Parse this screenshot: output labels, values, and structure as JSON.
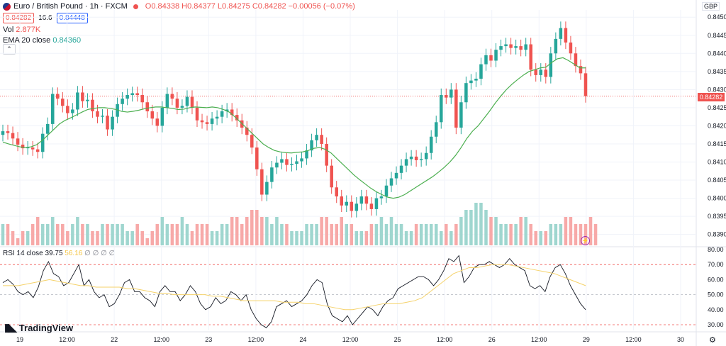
{
  "header": {
    "symbol": "Euro / British Pound · 1h · FXCM",
    "ohlc": "O0.84338 H0.84377 L0.84275 C0.84282 −0.00056 (−0.07%)",
    "bid": "0.84282",
    "spread": "16.6",
    "ask": "0.84448"
  },
  "volume_legend": {
    "name": "Vol",
    "value": "2.877K"
  },
  "ema_legend": {
    "name": "EMA 20 close",
    "value": "0.84360"
  },
  "rsi_legend": {
    "name": "RSI 14 close",
    "value1": "39.75",
    "value2": "56.16",
    "extras": "∅ ∅ ∅ ∅"
  },
  "price_axis": {
    "currency": "GBP",
    "current_price": "0.84282",
    "ticks": [
      "0.84500",
      "0.84450",
      "0.84400",
      "0.84350",
      "0.84300",
      "0.84250",
      "0.84200",
      "0.84150",
      "0.84100",
      "0.84050",
      "0.84000",
      "0.83950",
      "0.83900"
    ]
  },
  "rsi_axis": {
    "ticks": [
      "80.00",
      "70.00",
      "60.00",
      "50.00",
      "40.00",
      "30.00"
    ]
  },
  "time_axis": {
    "ticks": [
      "19",
      "12:00",
      "22",
      "12:00",
      "23",
      "12:00",
      "24",
      "12:00",
      "25",
      "12:00",
      "26",
      "12:00",
      "29",
      "12:00",
      "30"
    ]
  },
  "branding": {
    "logo_text": "TradingView"
  },
  "colors": {
    "up": "#26a69a",
    "down": "#ef5350",
    "ema": "#4caf50",
    "rsi": "#131722",
    "rsi_ma": "#f5d26a"
  },
  "chart_data": {
    "type": "candlestick",
    "title": "Euro / British Pound · 1h · FXCM",
    "ylim": [
      0.8387,
      0.8452
    ],
    "candles_close": [
      0.84185,
      0.8418,
      0.84165,
      0.84148,
      0.84138,
      0.8414,
      0.84135,
      0.84128,
      0.84178,
      0.84205,
      0.84288,
      0.84275,
      0.84255,
      0.84235,
      0.84245,
      0.84292,
      0.84268,
      0.84272,
      0.8424,
      0.84225,
      0.84228,
      0.8419,
      0.84225,
      0.8426,
      0.84275,
      0.84285,
      0.8429,
      0.84285,
      0.84265,
      0.8424,
      0.8422,
      0.842,
      0.8425,
      0.84288,
      0.84275,
      0.8425,
      0.84255,
      0.8428,
      0.8425,
      0.84215,
      0.8421,
      0.84205,
      0.8422,
      0.84225,
      0.8424,
      0.84245,
      0.8423,
      0.84215,
      0.84195,
      0.84175,
      0.8414,
      0.8408,
      0.8401,
      0.84045,
      0.84085,
      0.84098,
      0.84108,
      0.84092,
      0.84095,
      0.84102,
      0.8411,
      0.84132,
      0.8416,
      0.84175,
      0.8415,
      0.8409,
      0.8403,
      0.84005,
      0.8398,
      0.8399,
      0.83965,
      0.83985,
      0.84005,
      0.83985,
      0.8397,
      0.84,
      0.84005,
      0.84035,
      0.84055,
      0.8407,
      0.8409,
      0.84108,
      0.84115,
      0.84105,
      0.84108,
      0.84125,
      0.8417,
      0.8421,
      0.84285,
      0.84278,
      0.843,
      0.84195,
      0.84265,
      0.84318,
      0.84325,
      0.8433,
      0.8437,
      0.84395,
      0.8438,
      0.8441,
      0.8442,
      0.84425,
      0.84415,
      0.8442,
      0.8441,
      0.84425,
      0.84355,
      0.8434,
      0.84355,
      0.84335,
      0.844,
      0.8444,
      0.8447,
      0.8443,
      0.844,
      0.84365,
      0.84345,
      0.84282
    ],
    "ema20": [
      0.84155,
      0.8415,
      0.84146,
      0.84142,
      0.8414,
      0.84142,
      0.84148,
      0.8416,
      0.84175,
      0.8419,
      0.84205,
      0.84215,
      0.84222,
      0.8423,
      0.84238,
      0.84245,
      0.84248,
      0.8425,
      0.8425,
      0.84248,
      0.84245,
      0.8424,
      0.84238,
      0.8424,
      0.84243,
      0.84247,
      0.8425,
      0.84252,
      0.84252,
      0.8425,
      0.84248,
      0.84245,
      0.84246,
      0.8425,
      0.84252,
      0.84251,
      0.8425,
      0.84252,
      0.8425,
      0.84245,
      0.84238,
      0.84225,
      0.8421,
      0.84195,
      0.8418,
      0.84165,
      0.8415,
      0.8414,
      0.84132,
      0.84128,
      0.84126,
      0.84125,
      0.84127,
      0.84128,
      0.84132,
      0.84138,
      0.8414,
      0.84135,
      0.84125,
      0.8411,
      0.84095,
      0.8408,
      0.84065,
      0.84052,
      0.8404,
      0.84028,
      0.84018,
      0.8401,
      0.84003,
      0.84,
      0.84003,
      0.8401,
      0.8402,
      0.8403,
      0.8404,
      0.8405,
      0.8406,
      0.84072,
      0.84085,
      0.841,
      0.84118,
      0.8414,
      0.84165,
      0.84185,
      0.842,
      0.8422,
      0.8424,
      0.84262,
      0.84282,
      0.843,
      0.84315,
      0.84328,
      0.8434,
      0.8435,
      0.84355,
      0.8436,
      0.84362,
      0.84375,
      0.84385,
      0.84388,
      0.8438,
      0.8437,
      0.8436,
      0.8436
    ],
    "volume": [
      3,
      3,
      2,
      1,
      2,
      2,
      3,
      4,
      3,
      3,
      4,
      3,
      3,
      2,
      3,
      4,
      3,
      3,
      2,
      2,
      3,
      3,
      3,
      3,
      3,
      2,
      2,
      3,
      2,
      1,
      2,
      3,
      4,
      3,
      3,
      3,
      4,
      3,
      2,
      3,
      3,
      3,
      2,
      2,
      3,
      3,
      4,
      4,
      3,
      4,
      5,
      5,
      4,
      4,
      3,
      4,
      3,
      3,
      2,
      2,
      2,
      3,
      3,
      3,
      4,
      4,
      3,
      3,
      4,
      3,
      3,
      2,
      2,
      2,
      3,
      3,
      4,
      3,
      4,
      3,
      3,
      2,
      2,
      3,
      3,
      3,
      3,
      3,
      2,
      3,
      2,
      3,
      4,
      5,
      5,
      6,
      6,
      5,
      4,
      4,
      3,
      3,
      3,
      3,
      4,
      4,
      3,
      2,
      2,
      2,
      3,
      3,
      3,
      4,
      4,
      3,
      3,
      3,
      4,
      3
    ],
    "rsi14": [
      58,
      60,
      57,
      52,
      50,
      52,
      48,
      55,
      66,
      72,
      64,
      62,
      56,
      58,
      64,
      70,
      56,
      60,
      52,
      48,
      50,
      42,
      44,
      50,
      58,
      60,
      52,
      52,
      48,
      46,
      42,
      52,
      56,
      52,
      52,
      46,
      50,
      56,
      52,
      44,
      40,
      42,
      48,
      44,
      46,
      52,
      50,
      46,
      50,
      40,
      34,
      30,
      28,
      32,
      42,
      44,
      46,
      42,
      44,
      46,
      50,
      56,
      60,
      58,
      44,
      36,
      34,
      32,
      36,
      30,
      34,
      38,
      42,
      40,
      36,
      42,
      46,
      48,
      54,
      56,
      58,
      60,
      62,
      62,
      60,
      56,
      60,
      66,
      74,
      72,
      76,
      58,
      62,
      68,
      70,
      70,
      72,
      70,
      68,
      70,
      74,
      70,
      68,
      66,
      56,
      54,
      56,
      52,
      62,
      68,
      70,
      64,
      56,
      50,
      44,
      40
    ],
    "rsi_ma": [
      56,
      56,
      56,
      57,
      58,
      59,
      60,
      59,
      58,
      57,
      56,
      56,
      55,
      55,
      55,
      55,
      54,
      54,
      53,
      52,
      51,
      51,
      50,
      50,
      50,
      50,
      50,
      49,
      49,
      48,
      47,
      46,
      46,
      46,
      46,
      46,
      45,
      45,
      45,
      44,
      44,
      43,
      42,
      41,
      40,
      40,
      41,
      42,
      43,
      44,
      44,
      44,
      45,
      46,
      48,
      52,
      56,
      60,
      64,
      66,
      68,
      68,
      69,
      70,
      70,
      70,
      69,
      68,
      67,
      66,
      65,
      64,
      62,
      60,
      58,
      56
    ]
  }
}
